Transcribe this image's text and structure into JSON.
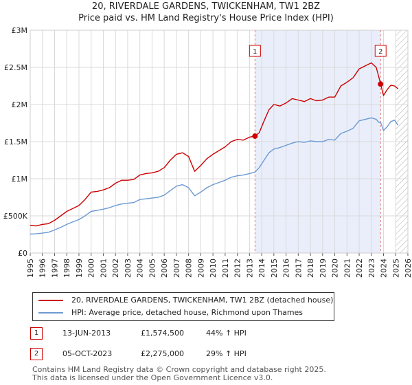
{
  "title_line1": "20, RIVERDALE GARDENS, TWICKENHAM, TW1 2BZ",
  "title_line2": "Price paid vs. HM Land Registry's House Price Index (HPI)",
  "colors": {
    "property": "#cc0000",
    "hpi": "#6b99d2",
    "shade": "#e9eefa",
    "marker_dash": "#e27777"
  },
  "chart_data": {
    "type": "line",
    "xlim": [
      1995.0,
      2026.0
    ],
    "ylim": [
      0,
      3000000
    ],
    "ytick_values": [
      0,
      500000,
      1000000,
      1500000,
      2000000,
      2500000,
      3000000
    ],
    "ytick_labels": [
      "£0",
      "£500K",
      "£1M",
      "£1.5M",
      "£2M",
      "£2.5M",
      "£3M"
    ],
    "xtick_values": [
      1995,
      1996,
      1997,
      1998,
      1999,
      2000,
      2001,
      2002,
      2003,
      2004,
      2005,
      2006,
      2007,
      2008,
      2009,
      2010,
      2011,
      2012,
      2013,
      2014,
      2015,
      2016,
      2017,
      2018,
      2019,
      2020,
      2021,
      2022,
      2023,
      2024,
      2025,
      2026
    ],
    "xtick_labels": [
      "1995",
      "1996",
      "1997",
      "1998",
      "1999",
      "2000",
      "2001",
      "2002",
      "2003",
      "2004",
      "2005",
      "2006",
      "2007",
      "2008",
      "2009",
      "2010",
      "2011",
      "2012",
      "2013",
      "2014",
      "2015",
      "2016",
      "2017",
      "2018",
      "2019",
      "2020",
      "2021",
      "2022",
      "2023",
      "2024",
      "2025",
      "2026"
    ],
    "shaded_period": [
      2013.45,
      2023.76
    ],
    "future_hatch_start": 2025.0,
    "series": [
      {
        "name": "20, RIVERDALE GARDENS, TWICKENHAM, TW1 2BZ (detached house)",
        "x": [
          1995.0,
          1995.5,
          1996.0,
          1996.5,
          1997.0,
          1997.5,
          1998.0,
          1998.5,
          1999.0,
          1999.5,
          2000.0,
          2000.5,
          2001.0,
          2001.5,
          2002.0,
          2002.5,
          2003.0,
          2003.5,
          2004.0,
          2004.5,
          2005.0,
          2005.5,
          2006.0,
          2006.5,
          2007.0,
          2007.5,
          2008.0,
          2008.5,
          2009.0,
          2009.5,
          2010.0,
          2010.5,
          2011.0,
          2011.5,
          2012.0,
          2012.5,
          2013.0,
          2013.45,
          2013.8,
          2014.2,
          2014.6,
          2015.0,
          2015.5,
          2016.0,
          2016.5,
          2017.0,
          2017.5,
          2018.0,
          2018.5,
          2019.0,
          2019.5,
          2020.0,
          2020.5,
          2021.0,
          2021.5,
          2022.0,
          2022.5,
          2023.0,
          2023.4,
          2023.6,
          2023.76,
          2024.0,
          2024.3,
          2024.6,
          2024.9,
          2025.2
        ],
        "values": [
          370000,
          365000,
          385000,
          395000,
          440000,
          500000,
          560000,
          600000,
          640000,
          720000,
          820000,
          830000,
          850000,
          880000,
          940000,
          980000,
          980000,
          990000,
          1050000,
          1070000,
          1080000,
          1100000,
          1150000,
          1250000,
          1330000,
          1350000,
          1300000,
          1100000,
          1180000,
          1270000,
          1330000,
          1380000,
          1430000,
          1500000,
          1530000,
          1520000,
          1560000,
          1574500,
          1620000,
          1780000,
          1930000,
          2000000,
          1980000,
          2020000,
          2080000,
          2060000,
          2040000,
          2080000,
          2050000,
          2060000,
          2100000,
          2100000,
          2250000,
          2300000,
          2360000,
          2480000,
          2520000,
          2560000,
          2500000,
          2380000,
          2275000,
          2120000,
          2200000,
          2260000,
          2250000,
          2210000
        ]
      },
      {
        "name": "HPI: Average price, detached house, Richmond upon Thames",
        "x": [
          1995.0,
          1995.5,
          1996.0,
          1996.5,
          1997.0,
          1997.5,
          1998.0,
          1998.5,
          1999.0,
          1999.5,
          2000.0,
          2000.5,
          2001.0,
          2001.5,
          2002.0,
          2002.5,
          2003.0,
          2003.5,
          2004.0,
          2004.5,
          2005.0,
          2005.5,
          2006.0,
          2006.5,
          2007.0,
          2007.5,
          2008.0,
          2008.5,
          2009.0,
          2009.5,
          2010.0,
          2010.5,
          2011.0,
          2011.5,
          2012.0,
          2012.5,
          2013.0,
          2013.45,
          2013.8,
          2014.2,
          2014.6,
          2015.0,
          2015.5,
          2016.0,
          2016.5,
          2017.0,
          2017.5,
          2018.0,
          2018.5,
          2019.0,
          2019.5,
          2020.0,
          2020.5,
          2021.0,
          2021.5,
          2022.0,
          2022.5,
          2023.0,
          2023.4,
          2023.6,
          2023.76,
          2024.0,
          2024.3,
          2024.6,
          2024.9,
          2025.2
        ],
        "values": [
          255000,
          258000,
          268000,
          280000,
          310000,
          345000,
          385000,
          420000,
          450000,
          500000,
          560000,
          575000,
          590000,
          610000,
          640000,
          660000,
          670000,
          680000,
          720000,
          730000,
          740000,
          750000,
          780000,
          840000,
          900000,
          920000,
          880000,
          770000,
          820000,
          880000,
          920000,
          950000,
          980000,
          1020000,
          1040000,
          1050000,
          1070000,
          1090000,
          1150000,
          1250000,
          1350000,
          1400000,
          1420000,
          1450000,
          1480000,
          1500000,
          1490000,
          1510000,
          1500000,
          1500000,
          1530000,
          1520000,
          1610000,
          1640000,
          1680000,
          1780000,
          1800000,
          1820000,
          1800000,
          1760000,
          1760000,
          1650000,
          1700000,
          1770000,
          1790000,
          1720000
        ]
      }
    ],
    "annotations": [
      {
        "label": "1",
        "x": 2013.45,
        "value": 1574500
      },
      {
        "label": "2",
        "x": 2023.76,
        "value": 2275000
      }
    ]
  },
  "legend": {
    "property_label": "20, RIVERDALE GARDENS, TWICKENHAM, TW1 2BZ (detached house)",
    "hpi_label": "HPI: Average price, detached house, Richmond upon Thames"
  },
  "sales": [
    {
      "num": "1",
      "date": "13-JUN-2013",
      "price": "£1,574,500",
      "hpi": "44% ↑ HPI"
    },
    {
      "num": "2",
      "date": "05-OCT-2023",
      "price": "£2,275,000",
      "hpi": "29% ↑ HPI"
    }
  ],
  "footer_line1": "Contains HM Land Registry data © Crown copyright and database right 2025.",
  "footer_line2": "This data is licensed under the Open Government Licence v3.0."
}
